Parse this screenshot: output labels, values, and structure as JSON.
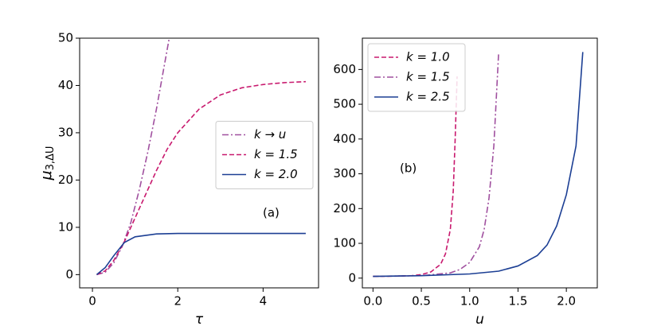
{
  "chart_data": [
    {
      "type": "line",
      "xlabel": "τ",
      "ylabel": "μ",
      "ylabel_sub": "3,ΔU",
      "annotation": "(a)",
      "xlim": [
        -0.3,
        5.3
      ],
      "ylim": [
        -2.8,
        50
      ],
      "xticks": [
        0,
        2,
        4
      ],
      "yticks": [
        0,
        10,
        20,
        30,
        40,
        50
      ],
      "legend": "center right",
      "series": [
        {
          "name": "k → u",
          "color": "#a0509f",
          "style": "dashdot",
          "x": [
            0.1,
            0.3,
            0.5,
            0.7,
            0.9,
            1.1,
            1.3,
            1.5,
            1.7,
            1.8
          ],
          "values": [
            0,
            0.5,
            2.5,
            6,
            11,
            18,
            26,
            35,
            45,
            50
          ]
        },
        {
          "name": "k = 1.5",
          "color": "#c8196e",
          "style": "dashed",
          "x": [
            0.1,
            0.3,
            0.5,
            0.75,
            1,
            1.25,
            1.5,
            1.75,
            2,
            2.5,
            3,
            3.5,
            4,
            4.5,
            5
          ],
          "values": [
            0,
            0.8,
            3,
            7,
            12,
            17,
            22,
            26.5,
            30,
            35,
            38,
            39.5,
            40.2,
            40.6,
            40.8
          ]
        },
        {
          "name": "k = 2.0",
          "color": "#1c3f94",
          "style": "solid",
          "x": [
            0.1,
            0.3,
            0.5,
            0.75,
            1,
            1.5,
            2,
            3,
            5
          ],
          "values": [
            0,
            1.5,
            4,
            6.8,
            8,
            8.6,
            8.7,
            8.7,
            8.7
          ]
        }
      ]
    },
    {
      "type": "line",
      "xlabel": "u",
      "annotation": "(b)",
      "xlim": [
        -0.11,
        2.32
      ],
      "ylim": [
        -28,
        690
      ],
      "xticks": [
        {
          "value": 0,
          "label": "0.0"
        },
        0.5,
        {
          "value": 1,
          "label": "1.0"
        },
        1.5,
        {
          "value": 2,
          "label": "2.0"
        }
      ],
      "yticks": [
        0,
        100,
        200,
        300,
        400,
        500,
        600
      ],
      "legend": "upper left",
      "series": [
        {
          "name": "k = 1.0",
          "color": "#c8196e",
          "style": "dashed",
          "x": [
            0,
            0.2,
            0.4,
            0.5,
            0.6,
            0.7,
            0.75,
            0.8,
            0.83,
            0.85,
            0.87
          ],
          "values": [
            5,
            5.5,
            7,
            10,
            18,
            40,
            70,
            140,
            250,
            400,
            580
          ]
        },
        {
          "name": "k = 1.5",
          "color": "#a0509f",
          "style": "dashdot",
          "x": [
            0,
            0.5,
            0.8,
            0.9,
            1.0,
            1.1,
            1.15,
            1.2,
            1.25,
            1.3
          ],
          "values": [
            5,
            7,
            15,
            25,
            45,
            90,
            140,
            230,
            380,
            650
          ]
        },
        {
          "name": "k = 2.5",
          "color": "#1c3f94",
          "style": "solid",
          "x": [
            0,
            0.5,
            1.0,
            1.3,
            1.5,
            1.7,
            1.8,
            1.9,
            2.0,
            2.1,
            2.17
          ],
          "values": [
            5,
            7,
            12,
            20,
            35,
            65,
            95,
            150,
            240,
            380,
            650
          ]
        }
      ]
    }
  ]
}
